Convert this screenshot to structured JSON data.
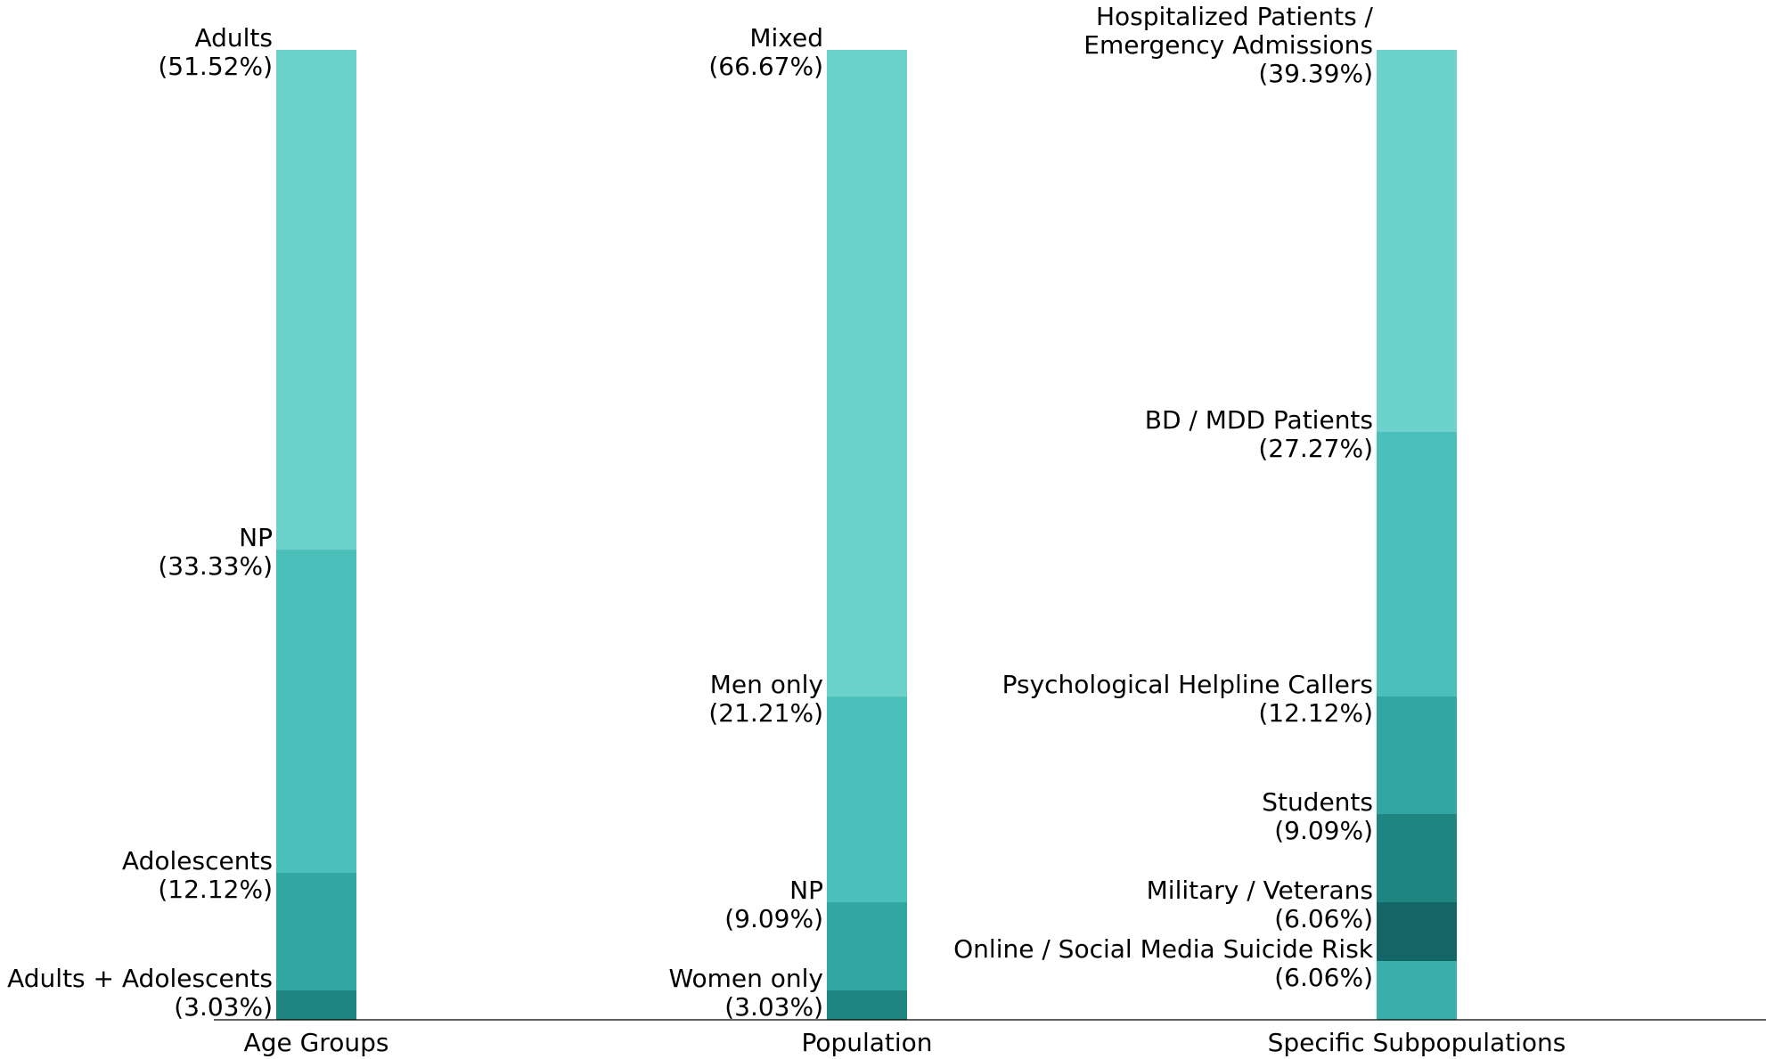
{
  "chart_data": {
    "type": "stacked-bar",
    "stacks": [
      {
        "category": "Age Groups",
        "segments": [
          {
            "label": "Adults + Adolescents",
            "percent_text": "(3.03%)",
            "value": 3.03,
            "color": "#1f8580"
          },
          {
            "label": "Adolescents",
            "percent_text": "(12.12%)",
            "value": 12.12,
            "color": "#31a6a2"
          },
          {
            "label": "NP",
            "percent_text": "(33.33%)",
            "value": 33.33,
            "color": "#4bbfb9"
          },
          {
            "label": "Adults",
            "percent_text": "(51.52%)",
            "value": 51.52,
            "color": "#6dd1cc"
          }
        ]
      },
      {
        "category": "Population",
        "segments": [
          {
            "label": "Women only",
            "percent_text": "(3.03%)",
            "value": 3.03,
            "color": "#1f8580"
          },
          {
            "label": "NP",
            "percent_text": "(9.09%)",
            "value": 9.09,
            "color": "#31a6a2"
          },
          {
            "label": "Men only",
            "percent_text": "(21.21%)",
            "value": 21.21,
            "color": "#4bbfb9"
          },
          {
            "label": "Mixed",
            "percent_text": "(66.67%)",
            "value": 66.67,
            "color": "#6dd1cc"
          }
        ]
      },
      {
        "category": "Specific Subpopulations",
        "segments": [
          {
            "label": "Online / Social Media Suicide Risk",
            "percent_text": "(6.06%)",
            "value": 6.06,
            "color": "#3aafab"
          },
          {
            "label": "Military / Veterans",
            "percent_text": "(6.06%)",
            "value": 6.06,
            "color": "#146565"
          },
          {
            "label": "Students",
            "percent_text": "(9.09%)",
            "value": 9.09,
            "color": "#1f8580"
          },
          {
            "label": "Psychological Helpline Callers",
            "percent_text": "(12.12%)",
            "value": 12.12,
            "color": "#31a6a2"
          },
          {
            "label": "BD / MDD Patients",
            "percent_text": "(27.27%)",
            "value": 27.27,
            "color": "#4bbfb9"
          },
          {
            "label": "Hospitalized Patients / Emergency Admissions",
            "label_lines": [
              "Hospitalized Patients /",
              "Emergency Admissions"
            ],
            "percent_text": "(39.39%)",
            "value": 39.39,
            "color": "#6dd1cc"
          }
        ]
      }
    ],
    "ylim": [
      0,
      100
    ],
    "xlabel": "",
    "ylabel": "",
    "title": "",
    "grid": false,
    "legend": "none"
  }
}
